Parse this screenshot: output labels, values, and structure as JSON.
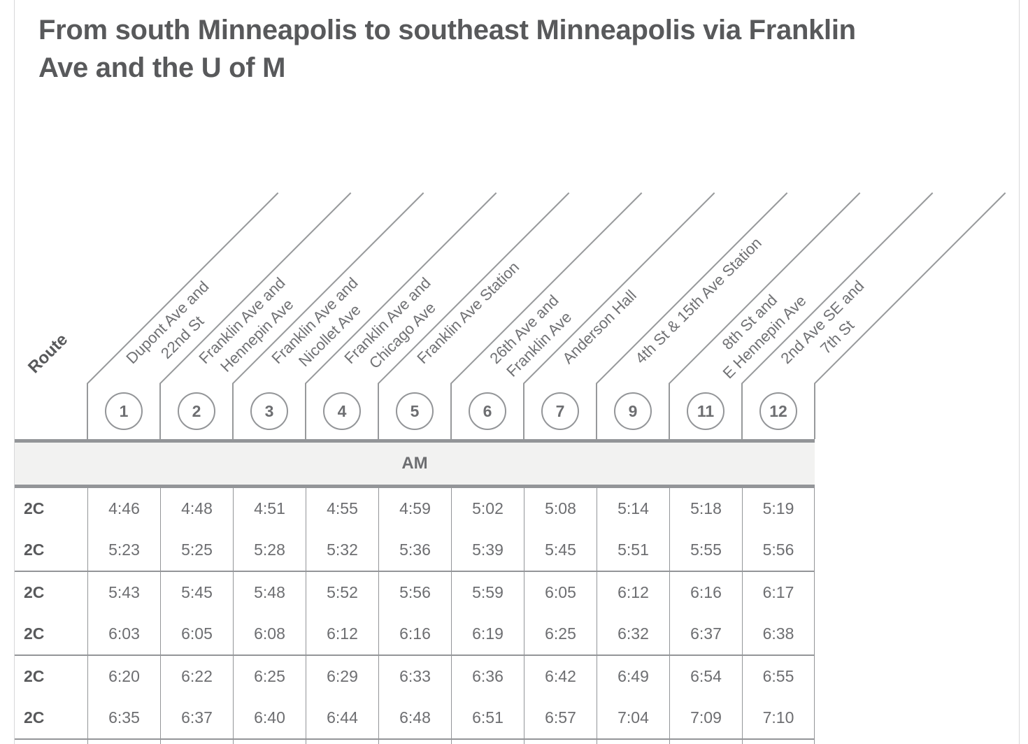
{
  "page": {
    "title": "From south Minneapolis to southeast Minneapolis via Franklin Ave and the U of M",
    "title_lines": [
      "From south Minneapolis to southeast Minneapolis via Franklin",
      "Ave and the U of M"
    ]
  },
  "schedule": {
    "route_column_header": "Route",
    "period_label": "AM",
    "stops": [
      {
        "number": "1",
        "name_lines": [
          "Dupont Ave and",
          "22nd St"
        ]
      },
      {
        "number": "2",
        "name_lines": [
          "Franklin Ave and",
          "Hennepin Ave"
        ]
      },
      {
        "number": "3",
        "name_lines": [
          "Franklin Ave and",
          "Nicollet Ave"
        ]
      },
      {
        "number": "4",
        "name_lines": [
          "Franklin Ave and",
          "Chicago Ave"
        ]
      },
      {
        "number": "5",
        "name_lines": [
          "Franklin Ave Station"
        ]
      },
      {
        "number": "6",
        "name_lines": [
          "26th Ave and",
          "Franklin Ave"
        ]
      },
      {
        "number": "7",
        "name_lines": [
          "Anderson Hall"
        ]
      },
      {
        "number": "9",
        "name_lines": [
          "4th St & 15th Ave Station"
        ]
      },
      {
        "number": "11",
        "name_lines": [
          "8th St and",
          "E Hennepin Ave"
        ]
      },
      {
        "number": "12",
        "name_lines": [
          "2nd Ave SE and",
          "7th St"
        ]
      }
    ],
    "trip_groups": [
      {
        "trips": [
          {
            "route": "2C",
            "times": [
              "4:46",
              "4:48",
              "4:51",
              "4:55",
              "4:59",
              "5:02",
              "5:08",
              "5:14",
              "5:18",
              "5:19"
            ]
          },
          {
            "route": "2C",
            "times": [
              "5:23",
              "5:25",
              "5:28",
              "5:32",
              "5:36",
              "5:39",
              "5:45",
              "5:51",
              "5:55",
              "5:56"
            ]
          }
        ]
      },
      {
        "trips": [
          {
            "route": "2C",
            "times": [
              "5:43",
              "5:45",
              "5:48",
              "5:52",
              "5:56",
              "5:59",
              "6:05",
              "6:12",
              "6:16",
              "6:17"
            ]
          },
          {
            "route": "2C",
            "times": [
              "6:03",
              "6:05",
              "6:08",
              "6:12",
              "6:16",
              "6:19",
              "6:25",
              "6:32",
              "6:37",
              "6:38"
            ]
          }
        ]
      },
      {
        "trips": [
          {
            "route": "2C",
            "times": [
              "6:20",
              "6:22",
              "6:25",
              "6:29",
              "6:33",
              "6:36",
              "6:42",
              "6:49",
              "6:54",
              "6:55"
            ]
          },
          {
            "route": "2C",
            "times": [
              "6:35",
              "6:37",
              "6:40",
              "6:44",
              "6:48",
              "6:51",
              "6:57",
              "7:04",
              "7:09",
              "7:10"
            ]
          }
        ]
      }
    ],
    "colors": {
      "title_text": "#58595b",
      "body_text": "#6d6e71",
      "rule_gray": "#939598",
      "band_background": "#f2f2f1",
      "card_border": "#d8d8d9"
    }
  }
}
